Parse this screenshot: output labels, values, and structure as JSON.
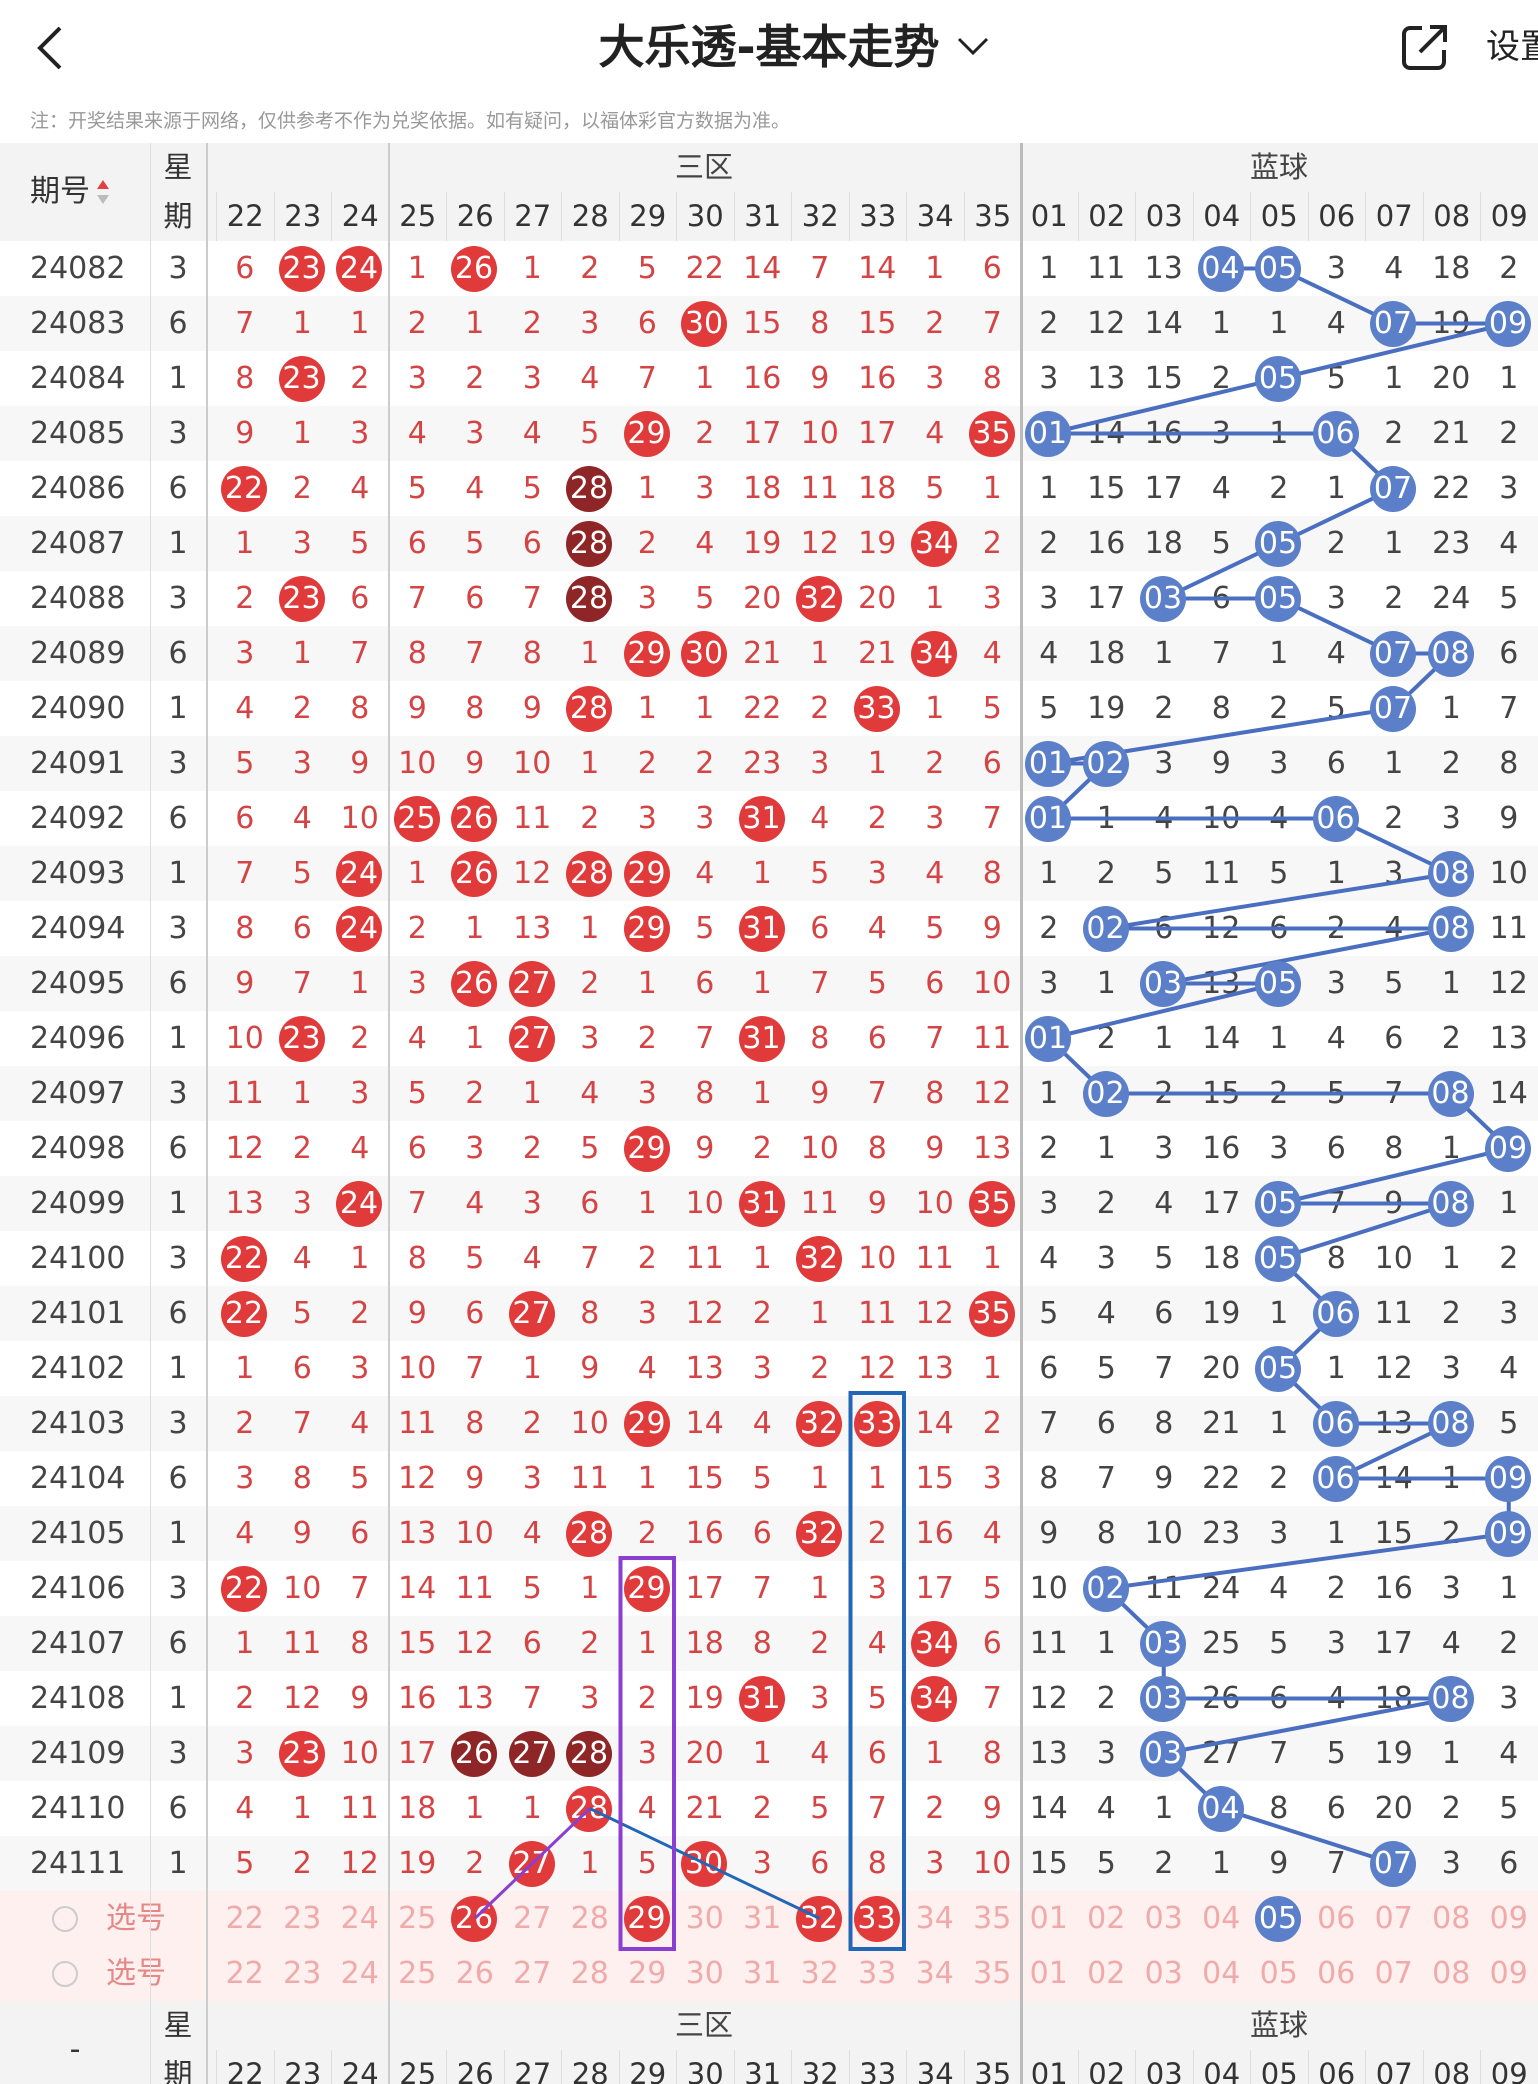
{
  "header": {
    "title": "大乐透-基本走势",
    "settings_label": "设置",
    "disclaimer": "注：开奖结果来源于网络，仅供参考不作为兑奖依据。如有疑问，以福体彩官方数据为准。"
  },
  "table": {
    "period_header": "期号",
    "weekday_header_top": "星",
    "weekday_header_bottom": "期",
    "zone_label": "三区",
    "blue_label": "蓝球",
    "footer_period": "-",
    "front_columns": [
      "22",
      "23",
      "24",
      "25",
      "26",
      "27",
      "28",
      "29",
      "30",
      "31",
      "32",
      "33",
      "34",
      "35"
    ],
    "blue_columns": [
      "01",
      "02",
      "03",
      "04",
      "05",
      "06",
      "07",
      "08",
      "09"
    ],
    "select_label": "选号",
    "rows": [
      {
        "issue": "24082",
        "week": "3",
        "front": [
          "6",
          "23",
          "24",
          "1",
          "26",
          "1",
          "2",
          "5",
          "22",
          "14",
          "7",
          "14",
          "1",
          "6"
        ],
        "blue": [
          "1",
          "11",
          "13",
          "04",
          "05",
          "3",
          "4",
          "18",
          "2"
        ]
      },
      {
        "issue": "24083",
        "week": "6",
        "front": [
          "7",
          "1",
          "1",
          "2",
          "1",
          "2",
          "3",
          "6",
          "30",
          "15",
          "8",
          "15",
          "2",
          "7"
        ],
        "blue": [
          "2",
          "12",
          "14",
          "1",
          "1",
          "4",
          "07",
          "19",
          "09"
        ]
      },
      {
        "issue": "24084",
        "week": "1",
        "front": [
          "8",
          "23",
          "2",
          "3",
          "2",
          "3",
          "4",
          "7",
          "1",
          "16",
          "9",
          "16",
          "3",
          "8"
        ],
        "blue": [
          "3",
          "13",
          "15",
          "2",
          "05",
          "5",
          "1",
          "20",
          "1"
        ]
      },
      {
        "issue": "24085",
        "week": "3",
        "front": [
          "9",
          "1",
          "3",
          "4",
          "3",
          "4",
          "5",
          "29",
          "2",
          "17",
          "10",
          "17",
          "4",
          "35"
        ],
        "blue": [
          "01",
          "14",
          "16",
          "3",
          "1",
          "06",
          "2",
          "21",
          "2"
        ]
      },
      {
        "issue": "24086",
        "week": "6",
        "front": [
          "22",
          "2",
          "4",
          "5",
          "4",
          "5",
          "28",
          "1",
          "3",
          "18",
          "11",
          "18",
          "5",
          "1"
        ],
        "blue": [
          "1",
          "15",
          "17",
          "4",
          "2",
          "1",
          "07",
          "22",
          "3"
        ]
      },
      {
        "issue": "24087",
        "week": "1",
        "front": [
          "1",
          "3",
          "5",
          "6",
          "5",
          "6",
          "28",
          "2",
          "4",
          "19",
          "12",
          "19",
          "34",
          "2"
        ],
        "blue": [
          "2",
          "16",
          "18",
          "5",
          "05",
          "2",
          "1",
          "23",
          "4"
        ]
      },
      {
        "issue": "24088",
        "week": "3",
        "front": [
          "2",
          "23",
          "6",
          "7",
          "6",
          "7",
          "28",
          "3",
          "5",
          "20",
          "32",
          "20",
          "1",
          "3"
        ],
        "blue": [
          "3",
          "17",
          "03",
          "6",
          "05",
          "3",
          "2",
          "24",
          "5"
        ]
      },
      {
        "issue": "24089",
        "week": "6",
        "front": [
          "3",
          "1",
          "7",
          "8",
          "7",
          "8",
          "1",
          "29",
          "30",
          "21",
          "1",
          "21",
          "34",
          "4"
        ],
        "blue": [
          "4",
          "18",
          "1",
          "7",
          "1",
          "4",
          "07",
          "08",
          "6"
        ]
      },
      {
        "issue": "24090",
        "week": "1",
        "front": [
          "4",
          "2",
          "8",
          "9",
          "8",
          "9",
          "28",
          "1",
          "1",
          "22",
          "2",
          "33",
          "1",
          "5"
        ],
        "blue": [
          "5",
          "19",
          "2",
          "8",
          "2",
          "5",
          "07",
          "1",
          "7"
        ]
      },
      {
        "issue": "24091",
        "week": "3",
        "front": [
          "5",
          "3",
          "9",
          "10",
          "9",
          "10",
          "1",
          "2",
          "2",
          "23",
          "3",
          "1",
          "2",
          "6"
        ],
        "blue": [
          "01",
          "02",
          "3",
          "9",
          "3",
          "6",
          "1",
          "2",
          "8"
        ]
      },
      {
        "issue": "24092",
        "week": "6",
        "front": [
          "6",
          "4",
          "10",
          "25",
          "26",
          "11",
          "2",
          "3",
          "3",
          "31",
          "4",
          "2",
          "3",
          "7"
        ],
        "blue": [
          "01",
          "1",
          "4",
          "10",
          "4",
          "06",
          "2",
          "3",
          "9"
        ]
      },
      {
        "issue": "24093",
        "week": "1",
        "front": [
          "7",
          "5",
          "24",
          "1",
          "26",
          "12",
          "28",
          "29",
          "4",
          "1",
          "5",
          "3",
          "4",
          "8"
        ],
        "blue": [
          "1",
          "2",
          "5",
          "11",
          "5",
          "1",
          "3",
          "08",
          "10"
        ]
      },
      {
        "issue": "24094",
        "week": "3",
        "front": [
          "8",
          "6",
          "24",
          "2",
          "1",
          "13",
          "1",
          "29",
          "5",
          "31",
          "6",
          "4",
          "5",
          "9"
        ],
        "blue": [
          "2",
          "02",
          "6",
          "12",
          "6",
          "2",
          "4",
          "08",
          "11"
        ]
      },
      {
        "issue": "24095",
        "week": "6",
        "front": [
          "9",
          "7",
          "1",
          "3",
          "26",
          "27",
          "2",
          "1",
          "6",
          "1",
          "7",
          "5",
          "6",
          "10"
        ],
        "blue": [
          "3",
          "1",
          "03",
          "13",
          "05",
          "3",
          "5",
          "1",
          "12"
        ]
      },
      {
        "issue": "24096",
        "week": "1",
        "front": [
          "10",
          "23",
          "2",
          "4",
          "1",
          "27",
          "3",
          "2",
          "7",
          "31",
          "8",
          "6",
          "7",
          "11"
        ],
        "blue": [
          "01",
          "2",
          "1",
          "14",
          "1",
          "4",
          "6",
          "2",
          "13"
        ]
      },
      {
        "issue": "24097",
        "week": "3",
        "front": [
          "11",
          "1",
          "3",
          "5",
          "2",
          "1",
          "4",
          "3",
          "8",
          "1",
          "9",
          "7",
          "8",
          "12"
        ],
        "blue": [
          "1",
          "02",
          "2",
          "15",
          "2",
          "5",
          "7",
          "08",
          "14"
        ]
      },
      {
        "issue": "24098",
        "week": "6",
        "front": [
          "12",
          "2",
          "4",
          "6",
          "3",
          "2",
          "5",
          "29",
          "9",
          "2",
          "10",
          "8",
          "9",
          "13"
        ],
        "blue": [
          "2",
          "1",
          "3",
          "16",
          "3",
          "6",
          "8",
          "1",
          "09"
        ]
      },
      {
        "issue": "24099",
        "week": "1",
        "front": [
          "13",
          "3",
          "24",
          "7",
          "4",
          "3",
          "6",
          "1",
          "10",
          "31",
          "11",
          "9",
          "10",
          "35"
        ],
        "blue": [
          "3",
          "2",
          "4",
          "17",
          "05",
          "7",
          "9",
          "08",
          "1"
        ]
      },
      {
        "issue": "24100",
        "week": "3",
        "front": [
          "22",
          "4",
          "1",
          "8",
          "5",
          "4",
          "7",
          "2",
          "11",
          "1",
          "32",
          "10",
          "11",
          "1"
        ],
        "blue": [
          "4",
          "3",
          "5",
          "18",
          "05",
          "8",
          "10",
          "1",
          "2"
        ]
      },
      {
        "issue": "24101",
        "week": "6",
        "front": [
          "22",
          "5",
          "2",
          "9",
          "6",
          "27",
          "8",
          "3",
          "12",
          "2",
          "1",
          "11",
          "12",
          "35"
        ],
        "blue": [
          "5",
          "4",
          "6",
          "19",
          "1",
          "06",
          "11",
          "2",
          "3"
        ]
      },
      {
        "issue": "24102",
        "week": "1",
        "front": [
          "1",
          "6",
          "3",
          "10",
          "7",
          "1",
          "9",
          "4",
          "13",
          "3",
          "2",
          "12",
          "13",
          "1"
        ],
        "blue": [
          "6",
          "5",
          "7",
          "20",
          "05",
          "1",
          "12",
          "3",
          "4"
        ]
      },
      {
        "issue": "24103",
        "week": "3",
        "front": [
          "2",
          "7",
          "4",
          "11",
          "8",
          "2",
          "10",
          "29",
          "14",
          "4",
          "32",
          "33",
          "14",
          "2"
        ],
        "blue": [
          "7",
          "6",
          "8",
          "21",
          "1",
          "06",
          "13",
          "08",
          "5"
        ]
      },
      {
        "issue": "24104",
        "week": "6",
        "front": [
          "3",
          "8",
          "5",
          "12",
          "9",
          "3",
          "11",
          "1",
          "15",
          "5",
          "1",
          "1",
          "15",
          "3"
        ],
        "blue": [
          "8",
          "7",
          "9",
          "22",
          "2",
          "06",
          "14",
          "1",
          "09"
        ]
      },
      {
        "issue": "24105",
        "week": "1",
        "front": [
          "4",
          "9",
          "6",
          "13",
          "10",
          "4",
          "28",
          "2",
          "16",
          "6",
          "32",
          "2",
          "16",
          "4"
        ],
        "blue": [
          "9",
          "8",
          "10",
          "23",
          "3",
          "1",
          "15",
          "2",
          "09"
        ]
      },
      {
        "issue": "24106",
        "week": "3",
        "front": [
          "22",
          "10",
          "7",
          "14",
          "11",
          "5",
          "1",
          "29",
          "17",
          "7",
          "1",
          "3",
          "17",
          "5"
        ],
        "blue": [
          "10",
          "02",
          "11",
          "24",
          "4",
          "2",
          "16",
          "3",
          "1"
        ]
      },
      {
        "issue": "24107",
        "week": "6",
        "front": [
          "1",
          "11",
          "8",
          "15",
          "12",
          "6",
          "2",
          "1",
          "18",
          "8",
          "2",
          "4",
          "34",
          "6"
        ],
        "blue": [
          "11",
          "1",
          "03",
          "25",
          "5",
          "3",
          "17",
          "4",
          "2"
        ]
      },
      {
        "issue": "24108",
        "week": "1",
        "front": [
          "2",
          "12",
          "9",
          "16",
          "13",
          "7",
          "3",
          "2",
          "19",
          "31",
          "3",
          "5",
          "34",
          "7"
        ],
        "blue": [
          "12",
          "2",
          "03",
          "26",
          "6",
          "4",
          "18",
          "08",
          "3"
        ]
      },
      {
        "issue": "24109",
        "week": "3",
        "front": [
          "3",
          "23",
          "10",
          "17",
          "26",
          "27",
          "28",
          "3",
          "20",
          "1",
          "4",
          "6",
          "1",
          "8"
        ],
        "blue": [
          "13",
          "3",
          "03",
          "27",
          "7",
          "5",
          "19",
          "1",
          "4"
        ]
      },
      {
        "issue": "24110",
        "week": "6",
        "front": [
          "4",
          "1",
          "11",
          "18",
          "1",
          "1",
          "28",
          "4",
          "21",
          "2",
          "5",
          "7",
          "2",
          "9"
        ],
        "blue": [
          "14",
          "4",
          "1",
          "04",
          "8",
          "6",
          "20",
          "2",
          "5"
        ]
      },
      {
        "issue": "24111",
        "week": "1",
        "front": [
          "5",
          "2",
          "12",
          "19",
          "2",
          "27",
          "1",
          "5",
          "30",
          "3",
          "6",
          "8",
          "3",
          "10"
        ],
        "blue": [
          "15",
          "5",
          "2",
          "1",
          "9",
          "7",
          "07",
          "3",
          "6"
        ]
      }
    ]
  },
  "colors": {
    "red_ball": "#e03a3a",
    "dark_ball": "#8e2526",
    "blue_ball": "#5b7fc9",
    "trend_line": "#4a6fc0",
    "purple_box": "#8a3fd1",
    "blue_box": "#2266b8"
  }
}
